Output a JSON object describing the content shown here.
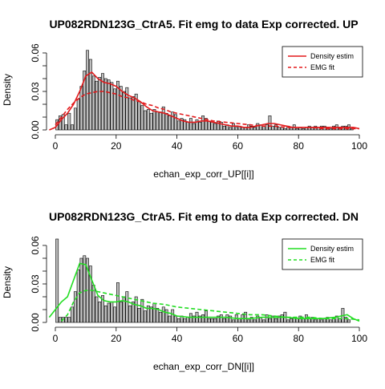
{
  "chart_data": [
    {
      "type": "histogram",
      "title": "UP082RDN123G_CtrA5. Fit emg to data Exp corrected. UP",
      "xlabel": "echan_exp_corr_UP[[i]]",
      "ylabel": "Density",
      "xlim": [
        0,
        100
      ],
      "ylim": [
        0,
        0.06
      ],
      "xticks": [
        "0",
        "20",
        "40",
        "60",
        "80",
        "100"
      ],
      "yticks": [
        "0.00",
        "0.03",
        "0.06"
      ],
      "bin_width": 1,
      "bin_start": 1,
      "bin_values": [
        0.008,
        0.011,
        0.012,
        0.004,
        0.013,
        0.004,
        0.017,
        0.024,
        0.034,
        0.046,
        0.062,
        0.055,
        0.042,
        0.038,
        0.041,
        0.044,
        0.04,
        0.039,
        0.037,
        0.032,
        0.038,
        0.034,
        0.03,
        0.033,
        0.025,
        0.026,
        0.028,
        0.022,
        0.019,
        0.015,
        0.016,
        0.013,
        0.016,
        0.014,
        0.014,
        0.018,
        0.013,
        0.011,
        0.014,
        0.012,
        0.007,
        0.009,
        0.008,
        0.006,
        0.009,
        0.005,
        0.008,
        0.006,
        0.011,
        0.009,
        0.007,
        0.006,
        0.005,
        0.007,
        0.006,
        0.003,
        0.004,
        0.002,
        0.005,
        0.002,
        0.003,
        0.002,
        0.002,
        0.004,
        0.003,
        0.002,
        0.005,
        0.004,
        0.003,
        0.004,
        0.011,
        0.003,
        0.004,
        0.002,
        0.002,
        0.001,
        0.003,
        0.002,
        0.004,
        0.001,
        0.002,
        0.001,
        0.002,
        0.003,
        0.002,
        0.003,
        0.002,
        0.003,
        0.003,
        0.002,
        0.001,
        0.003,
        0.004,
        0.002,
        0.003,
        0.003,
        0.004,
        0.001
      ],
      "series": [
        {
          "name": "Density estim",
          "style": "solid",
          "color": "#e31a1c",
          "x": [
            -2,
            0,
            2,
            4,
            6,
            8,
            10,
            12,
            14,
            16,
            18,
            20,
            22,
            24,
            26,
            28,
            30,
            32,
            34,
            36,
            38,
            40,
            42,
            44,
            46,
            48,
            50,
            52,
            54,
            56,
            58,
            60,
            62,
            64,
            66,
            68,
            70,
            72,
            74,
            76,
            78,
            80,
            82,
            84,
            86,
            88,
            90,
            92,
            94,
            96,
            98,
            100
          ],
          "y": [
            0.0,
            0.002,
            0.008,
            0.013,
            0.02,
            0.03,
            0.042,
            0.045,
            0.04,
            0.037,
            0.036,
            0.034,
            0.03,
            0.027,
            0.025,
            0.022,
            0.018,
            0.015,
            0.014,
            0.013,
            0.011,
            0.009,
            0.007,
            0.006,
            0.006,
            0.007,
            0.007,
            0.006,
            0.005,
            0.004,
            0.003,
            0.003,
            0.002,
            0.002,
            0.003,
            0.004,
            0.005,
            0.005,
            0.004,
            0.003,
            0.002,
            0.002,
            0.002,
            0.002,
            0.002,
            0.002,
            0.002,
            0.002,
            0.002,
            0.002,
            0.002,
            0.001
          ]
        },
        {
          "name": "EMG fit",
          "style": "dashed",
          "color": "#e31a1c",
          "x": [
            0,
            2,
            4,
            6,
            8,
            10,
            12,
            14,
            16,
            18,
            20,
            22,
            24,
            26,
            28,
            30,
            32,
            34,
            36,
            38,
            40,
            44,
            48,
            52,
            56,
            60,
            64,
            68,
            72,
            76,
            80,
            84,
            88,
            92,
            96,
            100
          ],
          "y": [
            0.004,
            0.01,
            0.016,
            0.021,
            0.025,
            0.028,
            0.029,
            0.03,
            0.03,
            0.029,
            0.028,
            0.026,
            0.025,
            0.023,
            0.022,
            0.02,
            0.019,
            0.017,
            0.016,
            0.014,
            0.013,
            0.011,
            0.009,
            0.007,
            0.006,
            0.005,
            0.004,
            0.003,
            0.003,
            0.002,
            0.002,
            0.002,
            0.001,
            0.001,
            0.001,
            0.001
          ]
        }
      ],
      "legend": {
        "position": "top-right",
        "entries": [
          "Density estim",
          "EMG fit"
        ]
      },
      "bar_fill": "#bebebe"
    },
    {
      "type": "histogram",
      "title": "UP082RDN123G_CtrA5. Fit emg to data Exp corrected. DN",
      "xlabel": "echan_exp_corr_DN[[i]]",
      "ylabel": "Density",
      "xlim": [
        0,
        100
      ],
      "ylim": [
        0,
        0.06
      ],
      "xticks": [
        "0",
        "20",
        "40",
        "60",
        "80",
        "100"
      ],
      "yticks": [
        "0.00",
        "0.03",
        "0.06"
      ],
      "bin_width": 1,
      "bin_start": 1,
      "bin_values": [
        0.065,
        0.004,
        0.004,
        0.004,
        0.004,
        0.012,
        0.024,
        0.041,
        0.05,
        0.052,
        0.05,
        0.044,
        0.029,
        0.02,
        0.016,
        0.021,
        0.013,
        0.015,
        0.016,
        0.012,
        0.031,
        0.016,
        0.02,
        0.024,
        0.013,
        0.016,
        0.02,
        0.011,
        0.018,
        0.009,
        0.013,
        0.012,
        0.015,
        0.011,
        0.008,
        0.012,
        0.01,
        0.005,
        0.01,
        0.005,
        0.003,
        0.005,
        0.003,
        0.004,
        0.007,
        0.005,
        0.008,
        0.005,
        0.006,
        0.009,
        0.003,
        0.003,
        0.003,
        0.005,
        0.006,
        0.003,
        0.006,
        0.005,
        0.002,
        0.006,
        0.003,
        0.006,
        0.008,
        0.002,
        0.004,
        0.002,
        0.005,
        0.004,
        0.002,
        0.006,
        0.003,
        0.005,
        0.003,
        0.005,
        0.006,
        0.008,
        0.002,
        0.003,
        0.004,
        0.003,
        0.005,
        0.003,
        0.006,
        0.003,
        0.004,
        0.002,
        0.003,
        0.002,
        0.003,
        0.004,
        0.002,
        0.004,
        0.005,
        0.003,
        0.011,
        0.004,
        0.002
      ],
      "series": [
        {
          "name": "Density estim",
          "style": "solid",
          "color": "#22dd22",
          "x": [
            -2,
            0,
            2,
            4,
            6,
            8,
            10,
            12,
            14,
            16,
            18,
            20,
            22,
            24,
            26,
            28,
            30,
            32,
            34,
            36,
            38,
            40,
            44,
            48,
            52,
            56,
            60,
            64,
            68,
            72,
            76,
            80,
            84,
            88,
            92,
            96,
            98,
            100
          ],
          "y": [
            0.004,
            0.01,
            0.016,
            0.02,
            0.033,
            0.046,
            0.045,
            0.033,
            0.021,
            0.017,
            0.016,
            0.016,
            0.017,
            0.016,
            0.014,
            0.013,
            0.011,
            0.011,
            0.01,
            0.008,
            0.007,
            0.005,
            0.004,
            0.004,
            0.004,
            0.004,
            0.003,
            0.003,
            0.004,
            0.004,
            0.004,
            0.003,
            0.003,
            0.003,
            0.004,
            0.006,
            0.003,
            0.001
          ]
        },
        {
          "name": "EMG fit",
          "style": "dashed",
          "color": "#22dd22",
          "x": [
            2,
            4,
            6,
            8,
            10,
            12,
            14,
            16,
            18,
            20,
            24,
            28,
            32,
            36,
            40,
            44,
            48,
            52,
            56,
            60,
            64,
            68,
            72,
            76,
            80,
            84,
            88,
            92,
            96,
            100
          ],
          "y": [
            0.001,
            0.006,
            0.016,
            0.023,
            0.025,
            0.025,
            0.024,
            0.023,
            0.022,
            0.021,
            0.019,
            0.017,
            0.015,
            0.014,
            0.012,
            0.011,
            0.01,
            0.009,
            0.008,
            0.007,
            0.006,
            0.006,
            0.005,
            0.004,
            0.004,
            0.004,
            0.003,
            0.003,
            0.003,
            0.002
          ]
        }
      ],
      "legend": {
        "position": "top-right",
        "entries": [
          "Density estim",
          "EMG fit"
        ]
      },
      "bar_fill": "#bebebe"
    }
  ]
}
